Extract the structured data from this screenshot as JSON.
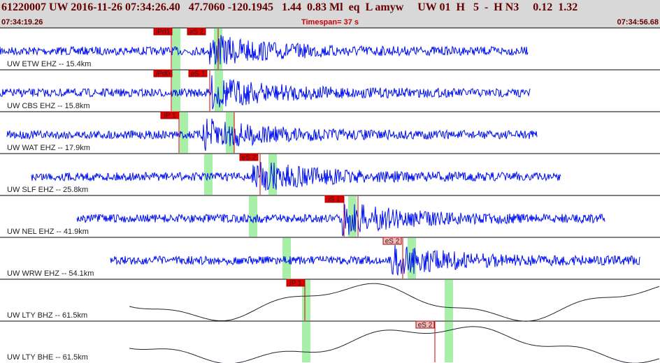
{
  "header": {
    "event": "61220007 UW 2016-11-26 07:34:26.40   47.7060 -120.1945   1.44  0.83 Ml  eq  L amyw     UW 01  H   5  -  H N3     0.12  1.32",
    "start": "07:34:19.26",
    "timespan": "Timespan=  37 s",
    "end": "07:34:56.68"
  },
  "traces": [
    {
      "label": "UW ETW EHZ -- 15.4km",
      "picks": [
        "iPd1",
        "eS 2"
      ]
    },
    {
      "label": "UW CBS EHZ -- 15.8km",
      "picks": [
        "iPd0",
        "eS 1"
      ]
    },
    {
      "label": "UW WAT EHZ -- 17.9km",
      "picks": [
        "iP 1"
      ]
    },
    {
      "label": "UW SLF EHZ -- 25.8km",
      "picks": [
        "eS 2"
      ]
    },
    {
      "label": "UW NEL EHZ -- 41.9km",
      "picks": [
        "iS 1"
      ]
    },
    {
      "label": "UW WRW EHZ -- 54.1km",
      "picks": [
        "eS 2"
      ]
    },
    {
      "label": "UW LTY BHZ -- 61.5km",
      "picks": [
        "iP 1"
      ]
    },
    {
      "label": "UW LTY BHE -- 61.5km",
      "picks": [
        "eS 2"
      ]
    }
  ]
}
